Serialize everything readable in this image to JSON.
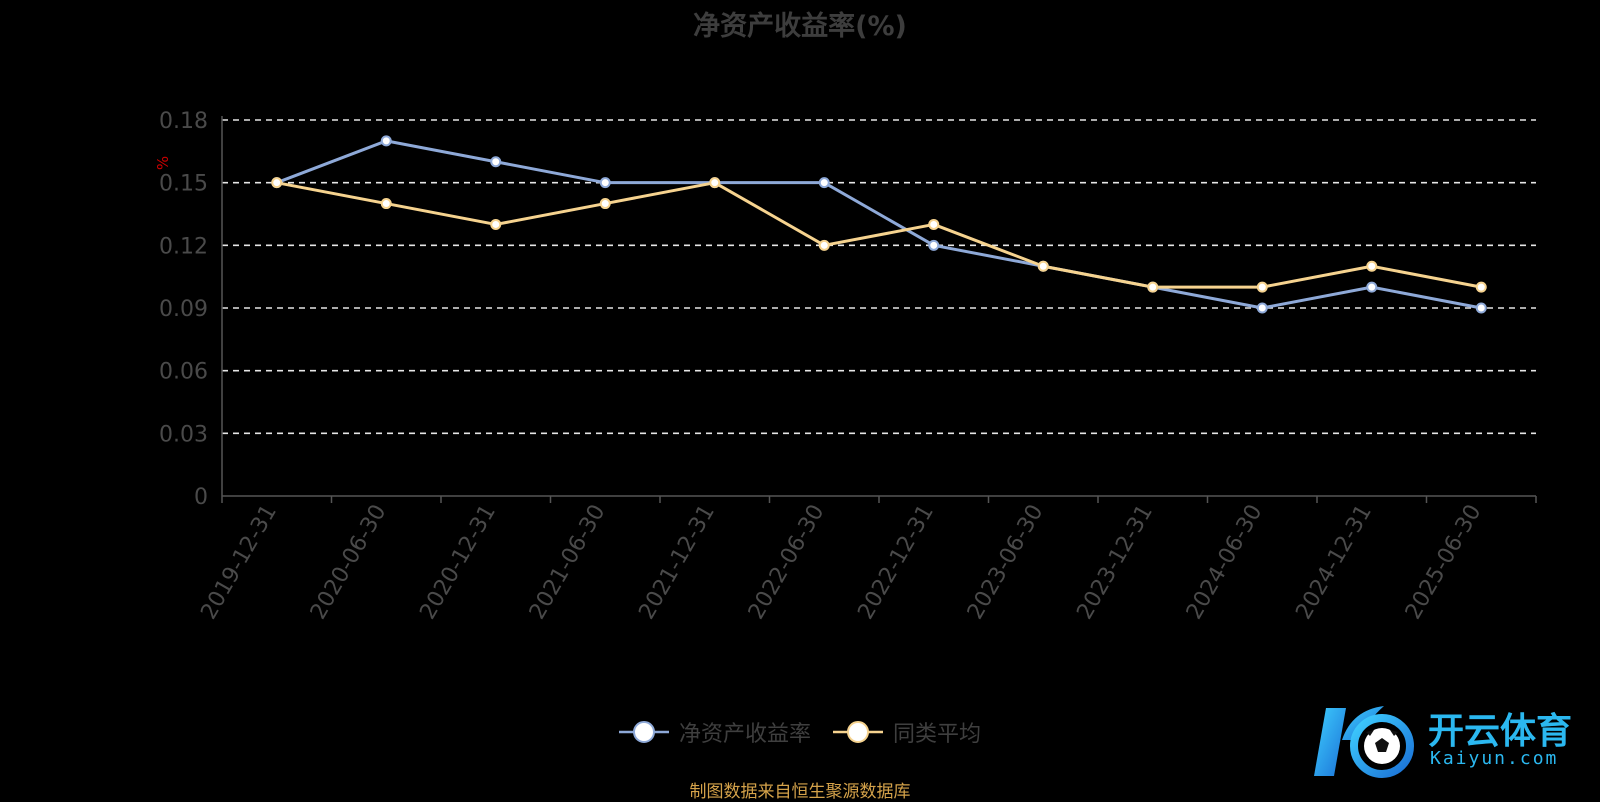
{
  "title": "净资产收益率(%)",
  "source": "制图数据来自恒生聚源数据库",
  "logo": {
    "text": "开云体育",
    "subtext": "Kaiyun.com"
  },
  "colors": {
    "background": "#000000",
    "series1": "#8ea9d8",
    "series2": "#f6d38f",
    "grid": "#e6e6e6",
    "unit_label": "#cc0000",
    "source": "#d4a24a",
    "logo": "#2bb8f0"
  },
  "chart_data": {
    "type": "line",
    "title": "净资产收益率(%)",
    "ylabel": "%",
    "ylim": [
      0,
      0.18
    ],
    "yticks": [
      "0",
      "0.03",
      "0.06",
      "0.09",
      "0.12",
      "0.15",
      "0.18"
    ],
    "grid": true,
    "legend_position": "bottom",
    "categories": [
      "2019-12-31",
      "2020-06-30",
      "2020-12-31",
      "2021-06-30",
      "2021-12-31",
      "2022-06-30",
      "2022-12-31",
      "2023-06-30",
      "2023-12-31",
      "2024-06-30",
      "2024-12-31",
      "2025-06-30"
    ],
    "series": [
      {
        "name": "净资产收益率",
        "values": [
          0.15,
          0.17,
          0.16,
          0.15,
          0.15,
          0.15,
          0.12,
          0.11,
          0.1,
          0.09,
          0.1,
          0.09
        ]
      },
      {
        "name": "同类平均",
        "values": [
          0.15,
          0.14,
          0.13,
          0.14,
          0.15,
          0.12,
          0.13,
          0.11,
          0.1,
          0.1,
          0.11,
          0.1
        ]
      }
    ]
  }
}
